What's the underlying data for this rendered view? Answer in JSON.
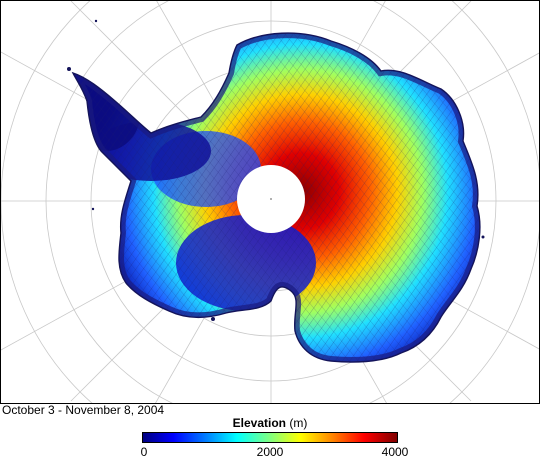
{
  "caption": "October 3 - November 8, 2004",
  "legend": {
    "title": "Elevation",
    "unit": "(m)",
    "ticks": [
      "0",
      "2000",
      "4000"
    ]
  },
  "map": {
    "region": "Antarctica",
    "projection": "polar stereographic (south)",
    "graticule": true,
    "data_gap": "pole hole (no coverage)"
  },
  "colors": {
    "low": "#000080",
    "mid_low": "#00ffff",
    "mid": "#ffff00",
    "high": "#ff0000",
    "top": "#800000",
    "tracks": "#1a1a6e"
  }
}
